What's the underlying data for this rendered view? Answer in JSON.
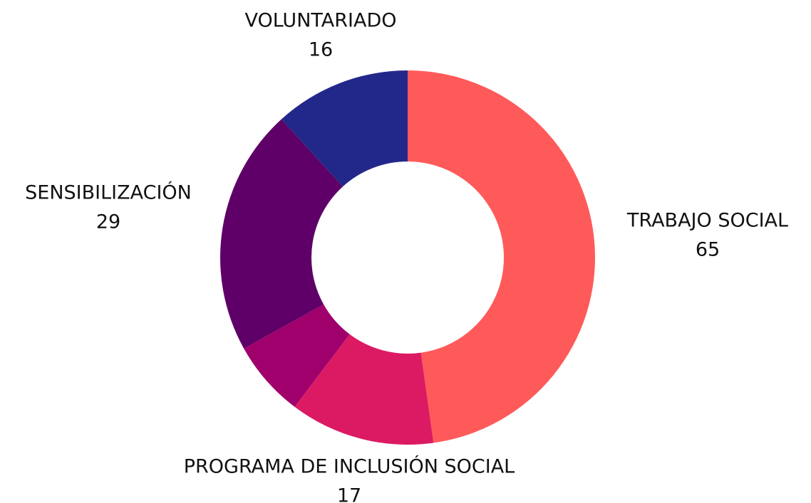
{
  "chart_data": {
    "type": "pie",
    "categories": [
      "TRABAJO SOCIAL",
      "PROGRAMA DE INCLUSIÓN SOCIAL",
      null,
      "SENSIBILIZACIÓN",
      "VOLUNTARIADO"
    ],
    "values": [
      65,
      17,
      9,
      29,
      16
    ],
    "colors": [
      "#ff5a5a",
      "#dc1a64",
      "#a0006b",
      "#5e0068",
      "#22288a"
    ]
  }
}
